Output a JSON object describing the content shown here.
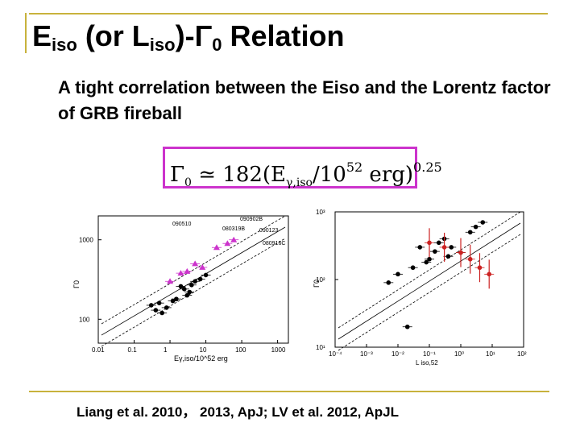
{
  "slide": {
    "title_prefix": "E",
    "title_sub1": "iso",
    "title_middle": " (or L",
    "title_sub2": "iso",
    "title_middle2": ")-Γ",
    "title_sub3": "0",
    "title_suffix": " Relation",
    "subtitle": "A tight correlation between the Eiso and the Lorentz factor of GRB fireball",
    "formula": {
      "lhs": "Γ",
      "lhs_sub": "0",
      "approx": " ≃ 182(E",
      "e_sub": "γ,iso",
      "mid": "/10",
      "exp52": "52",
      "tail": " erg)",
      "power": "0.25"
    },
    "caption": "Liang et al. 2010， 2013, ApJ; LV et al. 2012, ApJL"
  },
  "left_plot": {
    "ylabel": "Γ0",
    "xlabel": "Eγ,iso/10^52 erg",
    "x_ticks": [
      "0.01",
      "0.1",
      "1",
      "10",
      "100",
      "1000"
    ],
    "y_ticks": [
      "100",
      "1000"
    ],
    "labels": [
      "090510",
      "090902B",
      "080319B",
      "090123",
      "080916C"
    ]
  },
  "right_plot": {
    "ylabel": "Γ0",
    "xlabel": "L iso,52",
    "x_ticks": [
      "10⁻⁴",
      "10⁻³",
      "10⁻²",
      "10⁻¹",
      "10⁰",
      "10¹",
      "10²"
    ],
    "y_ticks": [
      "10³",
      "10²",
      "10¹"
    ]
  },
  "chart_data": [
    {
      "type": "scatter",
      "title": "",
      "xlabel": "Eγ,iso/10^52 erg",
      "ylabel": "Γ0",
      "xscale": "log",
      "yscale": "log",
      "xlim": [
        0.01,
        2000
      ],
      "ylim": [
        50,
        2000
      ],
      "series": [
        {
          "name": "GRBs (black)",
          "x": [
            0.3,
            0.5,
            0.8,
            1.2,
            0.6,
            2.0,
            3.5,
            5.0,
            7.0,
            10,
            1.5,
            2.5,
            4.0,
            0.4,
            3.0
          ],
          "y": [
            150,
            160,
            140,
            170,
            120,
            260,
            220,
            300,
            320,
            360,
            180,
            240,
            270,
            130,
            200
          ]
        },
        {
          "name": "Fermi GRBs (magenta triangles)",
          "x": [
            1.0,
            2.0,
            3.0,
            5.0,
            8.0,
            20,
            40,
            60
          ],
          "y": [
            300,
            380,
            400,
            500,
            450,
            800,
            900,
            1000
          ]
        }
      ],
      "labels": [
        "090510",
        "090902B",
        "080319B",
        "090123",
        "080916C"
      ]
    },
    {
      "type": "scatter",
      "title": "",
      "xlabel": "L iso,52",
      "ylabel": "Γ0",
      "xscale": "log",
      "yscale": "log",
      "xlim": [
        0.0001,
        100
      ],
      "ylim": [
        10,
        1000
      ],
      "series": [
        {
          "name": "GRBs (black)",
          "x": [
            0.005,
            0.01,
            0.03,
            0.05,
            0.1,
            0.2,
            0.3,
            0.5,
            1,
            2,
            3,
            5,
            0.08,
            0.15,
            0.4,
            0.02
          ],
          "y": [
            90,
            120,
            150,
            300,
            200,
            350,
            400,
            300,
            250,
            500,
            600,
            700,
            180,
            260,
            220,
            20
          ]
        },
        {
          "name": "GRBs (red)",
          "x": [
            0.1,
            0.3,
            1,
            2,
            4,
            8
          ],
          "y": [
            350,
            300,
            250,
            200,
            150,
            120
          ]
        }
      ]
    }
  ]
}
